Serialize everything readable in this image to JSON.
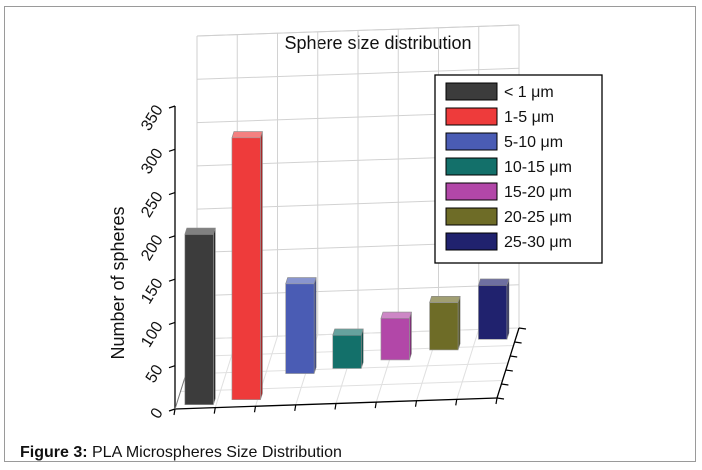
{
  "chart_data": {
    "type": "bar",
    "title": "Sphere size distribution",
    "ylabel": "Number of spheres",
    "xlabel": "",
    "ylim": [
      0,
      350
    ],
    "yticks": [
      0,
      50,
      100,
      150,
      200,
      250,
      300,
      350
    ],
    "grid": true,
    "legend_position": "top-right",
    "categories": [
      "< 1 μm",
      "1-5 μm",
      "5-10 μm",
      "10-15 μm",
      "15-20 μm",
      "20-25 μm",
      "25-30 μm"
    ],
    "values": [
      205,
      315,
      108,
      40,
      50,
      57,
      65
    ],
    "colors": [
      "#3c3c3c",
      "#ee3b3b",
      "#4a5cb4",
      "#13706a",
      "#b247a8",
      "#6e6c27",
      "#20226e"
    ]
  },
  "caption": {
    "label": "Figure 3:",
    "text": " PLA Microspheres Size Distribution"
  }
}
